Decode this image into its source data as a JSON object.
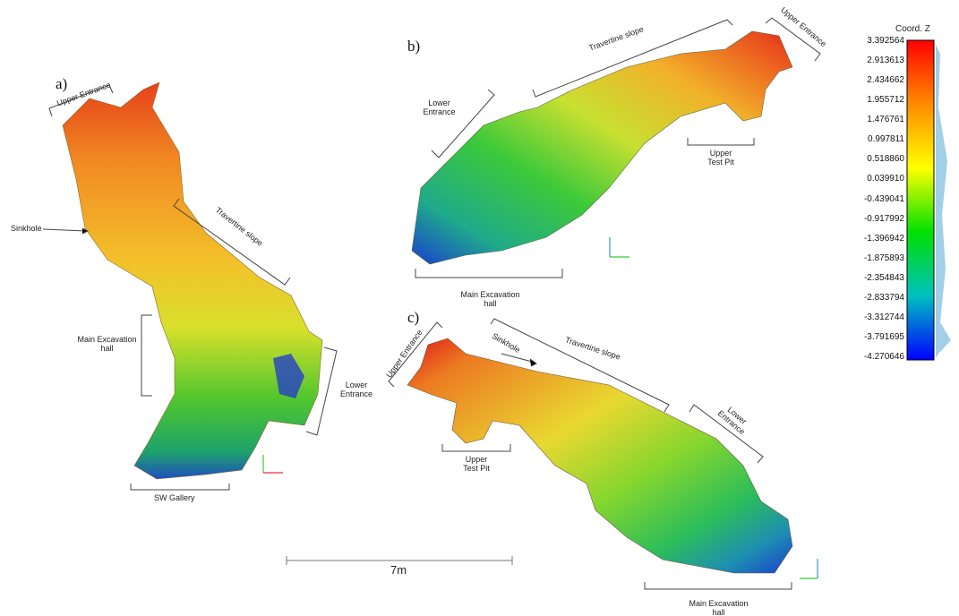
{
  "panels": [
    {
      "label": "a)",
      "annotations": [
        "Upper Entrance",
        "Sinkhole",
        "Travertine slope",
        "Main Excavation hall",
        "Lower Entrance",
        "SW Gallery"
      ]
    },
    {
      "label": "b)",
      "annotations": [
        "Travertine slope",
        "Upper Entrance",
        "Lower Entrance",
        "Upper Test Pit",
        "Main Excavation hall"
      ]
    },
    {
      "label": "c)",
      "annotations": [
        "Upper Entrance",
        "Sinkhole",
        "Travertine slope",
        "Lower Entrance",
        "Upper Test Pit",
        "Main Excavation hall"
      ]
    }
  ],
  "colorbar": {
    "title": "Coord. Z",
    "ticks": [
      "3.392564",
      "2.913613",
      "2.434662",
      "1.955712",
      "1.476761",
      "0.997811",
      "0.518860",
      "0.039910",
      "-0.439041",
      "-0.917992",
      "-1.396942",
      "-1.875893",
      "-2.354843",
      "-2.833794",
      "-3.312744",
      "-3.791695",
      "-4.270646"
    ]
  },
  "scale_bar": "7m"
}
